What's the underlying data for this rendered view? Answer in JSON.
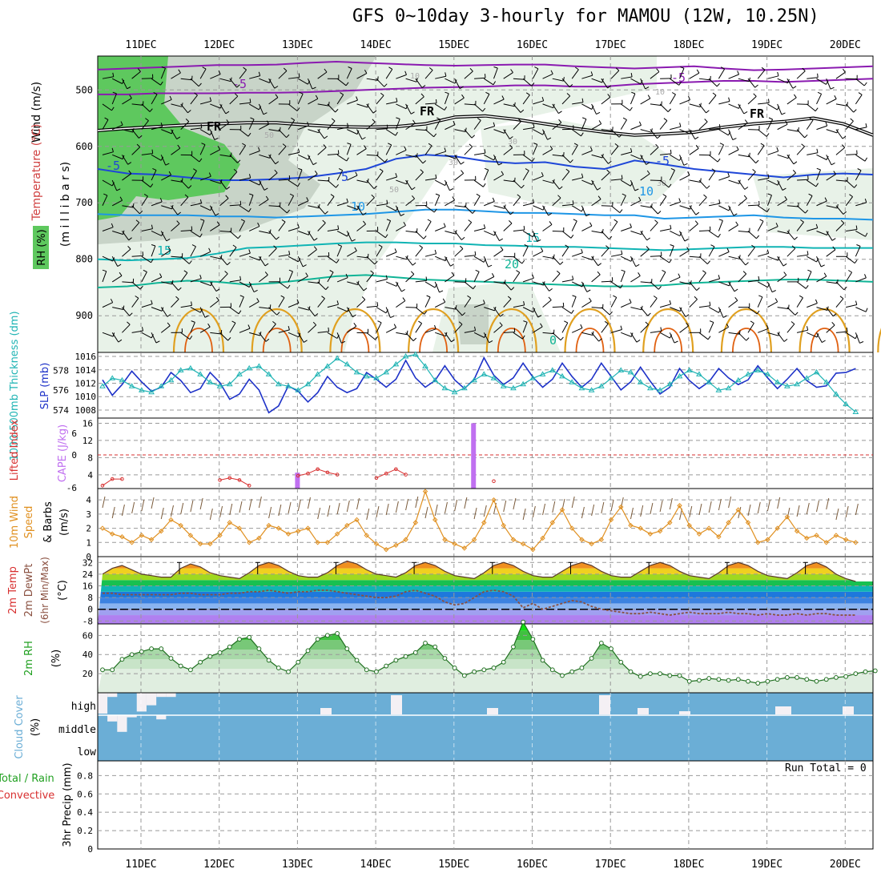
{
  "title": "GFS 0~10day 3-hourly for MAMOU (12W, 10.25N)",
  "run_total_label": "Run Total = 0",
  "dates": [
    "11DEC",
    "12DEC",
    "13DEC",
    "14DEC",
    "15DEC",
    "16DEC",
    "17DEC",
    "18DEC",
    "19DEC",
    "20DEC"
  ],
  "colors": {
    "rh_dark": "#5ec85e",
    "rh_mid": "#c8d4c8",
    "rh_light": "#e8f2e8",
    "temp_m5": "#8a1ab0",
    "temp_fr": "#000000",
    "temp_5": "#1e46d8",
    "temp_10": "#1e96e6",
    "temp_15": "#10b4b4",
    "temp_20": "#10b496",
    "temp_25": "#e0a020",
    "temp_30": "#e06010",
    "slp": "#1e32c8",
    "thickness": "#20b4b4",
    "cape": "#c070f0",
    "lifted_index": "#d83030",
    "wind10m": "#e09020",
    "rh2m": "#20a020",
    "cloud": "#6baed6"
  },
  "chart_data": [
    {
      "type": "contour",
      "panel": "vertical",
      "ylabel_rh": "RH (%)",
      "ylabel_temp": "Temperature (°C)",
      "ylabel_wind": "Wind (m/s)",
      "ylabel_units": "(m i l l i b a r s)",
      "y_ticks": [
        500,
        600,
        700,
        800,
        900
      ],
      "ylim": [
        440,
        965
      ],
      "contour_labels": [
        "-5",
        "-5",
        "FR",
        "FR",
        "FR",
        "-5",
        "5",
        "-5",
        "10",
        "10",
        "15",
        "15",
        "20",
        "0",
        "10",
        "10",
        "30",
        "30",
        "50",
        "50",
        "30"
      ],
      "isotherms": [
        {
          "label": "-5",
          "level": -5,
          "p": [
            464,
            462,
            460,
            458,
            456,
            456,
            455,
            452,
            450,
            452,
            454,
            456,
            457,
            456,
            455,
            455,
            458,
            460,
            462,
            460,
            458,
            462,
            465,
            464,
            462,
            460,
            458
          ]
        },
        {
          "label": "-5",
          "level": -5,
          "p": [
            508,
            508,
            506,
            506,
            506,
            505,
            505,
            504,
            502,
            500,
            498,
            496,
            495,
            494,
            492,
            492,
            494,
            494,
            490,
            488,
            486,
            484,
            484,
            486,
            484,
            482,
            480
          ]
        },
        {
          "label": "FR",
          "level": 0,
          "p": [
            572,
            568,
            565,
            562,
            560,
            558,
            558,
            562,
            565,
            566,
            565,
            560,
            548,
            546,
            552,
            560,
            568,
            575,
            580,
            578,
            575,
            566,
            560,
            556,
            550,
            560,
            580
          ]
        },
        {
          "label": "5",
          "level": 5,
          "p": [
            640,
            648,
            650,
            655,
            660,
            660,
            658,
            655,
            648,
            640,
            622,
            615,
            618,
            626,
            630,
            628,
            636,
            640,
            625,
            632,
            640,
            645,
            650,
            655,
            650,
            648,
            650
          ]
        },
        {
          "label": "10",
          "level": 10,
          "p": [
            720,
            722,
            722,
            722,
            724,
            724,
            726,
            724,
            722,
            720,
            716,
            712,
            712,
            715,
            718,
            718,
            720,
            722,
            722,
            728,
            726,
            724,
            722,
            726,
            728,
            728,
            730
          ]
        },
        {
          "label": "15",
          "level": 15,
          "p": [
            800,
            802,
            800,
            798,
            790,
            780,
            778,
            775,
            772,
            770,
            770,
            772,
            772,
            775,
            776,
            778,
            778,
            780,
            782,
            784,
            782,
            780,
            778,
            778,
            780,
            780,
            780
          ]
        },
        {
          "label": "20",
          "level": 20,
          "p": [
            850,
            848,
            842,
            838,
            840,
            845,
            842,
            836,
            830,
            828,
            832,
            836,
            838,
            840,
            842,
            844,
            846,
            848,
            848,
            846,
            842,
            840,
            838,
            836,
            836,
            838,
            840
          ]
        }
      ]
    },
    {
      "type": "line",
      "panel": "slp_thickness",
      "ylabel_left": "1000-500mb Thickness (dm)",
      "ylabel_right": "SLP (mb)",
      "left_ticks": [
        574,
        576,
        578
      ],
      "right_ticks": [
        1008,
        1010,
        1012,
        1014,
        1016
      ],
      "series": [
        {
          "name": "SLP",
          "unit": "mb",
          "values": [
            1012.5,
            1010.2,
            1011.8,
            1013.8,
            1012.2,
            1010.8,
            1011.4,
            1013.6,
            1012.4,
            1010.6,
            1011.2,
            1013.6,
            1012.1,
            1009.6,
            1010.4,
            1012.6,
            1011.0,
            1007.6,
            1008.6,
            1011.6,
            1010.8,
            1009.2,
            1010.6,
            1013.0,
            1011.4,
            1010.6,
            1011.2,
            1013.6,
            1012.6,
            1011.4,
            1012.6,
            1015.4,
            1012.8,
            1011.4,
            1012.4,
            1014.6,
            1012.5,
            1011.2,
            1012.6,
            1015.8,
            1013.2,
            1011.8,
            1012.8,
            1015.0,
            1012.9,
            1011.4,
            1012.6,
            1015.0,
            1013.0,
            1011.4,
            1012.6,
            1015.0,
            1013.0,
            1011.0,
            1012.2,
            1014.4,
            1012.3,
            1010.4,
            1011.4,
            1014.2,
            1012.4,
            1011.2,
            1012.2,
            1014.2,
            1012.8,
            1011.8,
            1012.5,
            1014.6,
            1012.8,
            1011.2,
            1012.6,
            1014.2,
            1012.4,
            1011.4,
            1011.6,
            1013.5,
            1013.6,
            1014.2
          ]
        },
        {
          "name": "Thickness",
          "unit": "dm",
          "values": [
            576.4,
            577.2,
            577.0,
            576.4,
            576.0,
            575.8,
            576.4,
            577.0,
            578.0,
            578.2,
            577.6,
            576.8,
            576.4,
            576.6,
            577.6,
            578.2,
            578.4,
            577.6,
            576.6,
            576.4,
            576.0,
            576.6,
            577.6,
            578.4,
            579.2,
            578.6,
            577.8,
            577.4,
            577.2,
            577.8,
            578.6,
            579.4,
            579.6,
            578.4,
            577.0,
            576.2,
            575.8,
            576.2,
            577.0,
            577.6,
            577.2,
            576.4,
            576.2,
            576.6,
            577.2,
            577.6,
            578.0,
            577.4,
            576.8,
            576.2,
            576.0,
            576.4,
            577.2,
            578.0,
            577.8,
            576.8,
            576.2,
            576.0,
            576.6,
            577.4,
            578.0,
            577.6,
            576.8,
            576.0,
            576.2,
            577.0,
            577.6,
            578.0,
            577.6,
            576.8,
            576.4,
            576.6,
            577.2,
            577.8,
            576.8,
            575.6,
            574.6,
            573.8
          ]
        }
      ]
    },
    {
      "type": "bar",
      "panel": "cape_li",
      "ylabel_left": "Lifted Index",
      "ylabel_right": "CAPE (J/kg)",
      "li_ticks": [
        "6",
        "0",
        "-6"
      ],
      "li_ticks_bottom": [
        "6",
        "4"
      ],
      "cape_ticks": [
        4,
        8,
        12,
        16
      ],
      "cape_bars": [
        {
          "date_index": 2,
          "offset": 0.0,
          "value": 4.5
        },
        {
          "date_index": 4,
          "offset": 0.25,
          "value": 16
        }
      ],
      "li_series": {
        "name": "Lifted Index",
        "values": [
          5.6,
          4.4,
          4.4,
          null,
          null,
          null,
          null,
          null,
          null,
          null,
          null,
          null,
          4.6,
          4.2,
          4.6,
          5.6,
          null,
          null,
          null,
          null,
          3.8,
          3.4,
          2.6,
          3.2,
          3.6,
          null,
          null,
          null,
          4.2,
          3.4,
          2.6,
          3.6,
          null,
          null,
          null,
          null,
          null,
          null,
          null,
          null,
          4.8,
          null,
          null,
          null,
          null,
          null,
          null,
          null
        ]
      }
    },
    {
      "type": "line",
      "panel": "wind10m",
      "ylabel": "10m Wind Speed & Barbs (m/s)",
      "y_ticks": [
        0,
        1,
        2,
        3,
        4
      ],
      "series": [
        {
          "name": "10m Wind",
          "unit": "m/s",
          "values": [
            2.0,
            1.6,
            1.4,
            1.0,
            1.5,
            1.2,
            1.8,
            2.6,
            2.2,
            1.5,
            0.9,
            0.9,
            1.5,
            2.4,
            2.0,
            1.0,
            1.3,
            2.2,
            2.0,
            1.6,
            1.8,
            2.0,
            1.0,
            1.0,
            1.6,
            2.2,
            2.6,
            1.5,
            0.9,
            0.5,
            0.8,
            1.2,
            2.4,
            4.6,
            2.6,
            1.2,
            0.9,
            0.6,
            1.2,
            2.4,
            4.0,
            2.2,
            1.2,
            0.9,
            0.5,
            1.3,
            2.4,
            3.3,
            2.0,
            1.2,
            0.9,
            1.2,
            2.6,
            3.5,
            2.2,
            2.0,
            1.6,
            1.8,
            2.4,
            3.6,
            2.2,
            1.6,
            2.0,
            1.4,
            2.4,
            3.3,
            2.4,
            1.0,
            1.2,
            2.0,
            2.8,
            1.8,
            1.3,
            1.5,
            1.0,
            1.5,
            1.2,
            1.0
          ]
        }
      ]
    },
    {
      "type": "area",
      "panel": "temp2m",
      "ylabel": "2m Temp 2m DewPt (6hr Min/Max) (°C)",
      "y_ticks": [
        -8,
        0,
        8,
        16,
        24,
        32
      ],
      "series": [
        {
          "name": "2m Temp",
          "unit": "°C",
          "values": [
            24,
            28,
            30,
            27,
            24,
            23,
            22,
            22,
            28,
            31,
            29,
            25,
            23,
            22,
            21,
            25,
            30,
            32,
            30,
            26,
            23,
            22,
            22,
            25,
            30,
            33,
            31,
            27,
            24,
            23,
            22,
            25,
            30,
            32,
            30,
            26,
            23,
            22,
            21,
            25,
            30,
            32,
            30,
            26,
            23,
            22,
            22,
            26,
            30,
            32,
            30,
            26,
            23,
            22,
            22,
            26,
            30,
            32,
            30,
            26,
            23,
            22,
            21,
            25,
            30,
            32,
            30,
            26,
            23,
            22,
            21,
            25,
            30,
            32,
            29,
            24,
            21,
            19
          ]
        },
        {
          "name": "2m DewPt",
          "unit": "°C",
          "values": [
            11,
            11,
            10,
            10,
            10,
            10,
            10,
            10,
            11,
            11,
            10,
            10,
            10,
            11,
            11,
            12,
            12,
            13,
            12,
            11,
            12,
            12,
            13,
            13,
            12,
            11,
            10,
            9,
            8,
            8,
            9,
            12,
            13,
            11,
            9,
            5,
            3,
            4,
            8,
            12,
            13,
            12,
            9,
            1,
            4,
            0,
            2,
            4,
            6,
            5,
            2,
            0,
            -1,
            -2,
            -3,
            -3,
            -2,
            -3,
            -4,
            -3,
            -2,
            -3,
            -3,
            -3,
            -2,
            -3,
            -3,
            -4,
            -3,
            -4,
            -4,
            -3,
            -4,
            -3,
            -3,
            -4,
            -4,
            -4
          ]
        }
      ]
    },
    {
      "type": "area",
      "panel": "rh2m",
      "ylabel": "2m RH (%)",
      "y_ticks": [
        20,
        40,
        60
      ],
      "series": [
        {
          "name": "2m RH",
          "unit": "%",
          "values": [
            24,
            24,
            35,
            40,
            43,
            46,
            46,
            36,
            28,
            24,
            32,
            38,
            42,
            48,
            56,
            58,
            46,
            34,
            26,
            22,
            32,
            44,
            56,
            60,
            62,
            46,
            34,
            24,
            22,
            28,
            34,
            38,
            42,
            52,
            48,
            36,
            26,
            18,
            22,
            24,
            26,
            32,
            48,
            74,
            56,
            34,
            24,
            18,
            22,
            26,
            36,
            52,
            46,
            32,
            22,
            17,
            20,
            20,
            18,
            18,
            12,
            13,
            15,
            14,
            13,
            14,
            12,
            10,
            12,
            14,
            16,
            16,
            14,
            12,
            14,
            16,
            17,
            20,
            22,
            23
          ]
        }
      ]
    },
    {
      "type": "bar",
      "panel": "cloud",
      "ylabel": "Cloud Cover (%)",
      "row_labels": [
        "high",
        "middle",
        "low"
      ],
      "high_clear": [
        1.0,
        0.2,
        0.0,
        0.0,
        0.9,
        0.6,
        0.2,
        0.2,
        0.0,
        0.0,
        0.0,
        0.0,
        0.0,
        0.0,
        0.0,
        0.0,
        0.0,
        0.0,
        0.0,
        0.0,
        0.0,
        0.0,
        0.0,
        0.0,
        0.0,
        0.0,
        0.0,
        0.0,
        0.0,
        0.0,
        0.0,
        0.0,
        0.0,
        0.0,
        0.0,
        0.0,
        0.0,
        0.0,
        0.0,
        0.0,
        0.0,
        0.0,
        0.0,
        0.0,
        0.0,
        0.0,
        0.0,
        0.0,
        0.0,
        0.0,
        0.0,
        0.0,
        0.0,
        0.0,
        0.0,
        0.0,
        0.0,
        0.0,
        0.0,
        0.0,
        0.0,
        0.0,
        0.0,
        0.0,
        0.0,
        0.0,
        0.0,
        0.0,
        0.0,
        0.0,
        0.0,
        0.0,
        0.0,
        0.0,
        0.0,
        0.0,
        0.0,
        0.0
      ],
      "mid_clear": [
        0.0,
        0.3,
        0.8,
        0.1,
        0.0,
        0.0,
        0.2,
        0.0,
        0.0,
        0.0,
        0.0,
        0.0,
        0.0,
        0.0,
        0.0,
        0.0,
        0.0,
        0.0,
        0.0,
        0.0,
        0.0,
        0.0,
        0.0,
        0.0,
        0.0,
        0.0,
        0.0,
        0.0,
        0.0,
        0.0,
        0.0,
        0.0,
        0.0,
        0.0,
        0.0,
        0.0,
        0.0,
        0.0,
        0.0,
        0.0,
        0.0,
        0.0,
        0.0,
        0.0,
        0.0,
        0.0,
        0.0,
        0.0,
        0.0,
        0.0,
        0.0,
        0.0,
        0.0,
        0.0,
        0.0,
        0.0,
        0.0,
        0.0,
        0.0,
        0.0,
        0.0,
        0.0,
        0.0,
        0.0,
        0.0,
        0.0,
        0.0,
        0.0,
        0.0,
        0.0,
        0.0,
        0.0,
        0.0,
        0.0,
        0.0,
        0.0,
        0.0,
        0.0
      ]
    },
    {
      "type": "bar",
      "panel": "precip",
      "ylabel_left": "Total / Rain",
      "ylabel_left2": "Convective",
      "ylabel_right": "3hr Precip (mm)",
      "y_ticks": [
        0,
        0.2,
        0.4,
        0.6,
        0.8
      ],
      "values": []
    }
  ]
}
